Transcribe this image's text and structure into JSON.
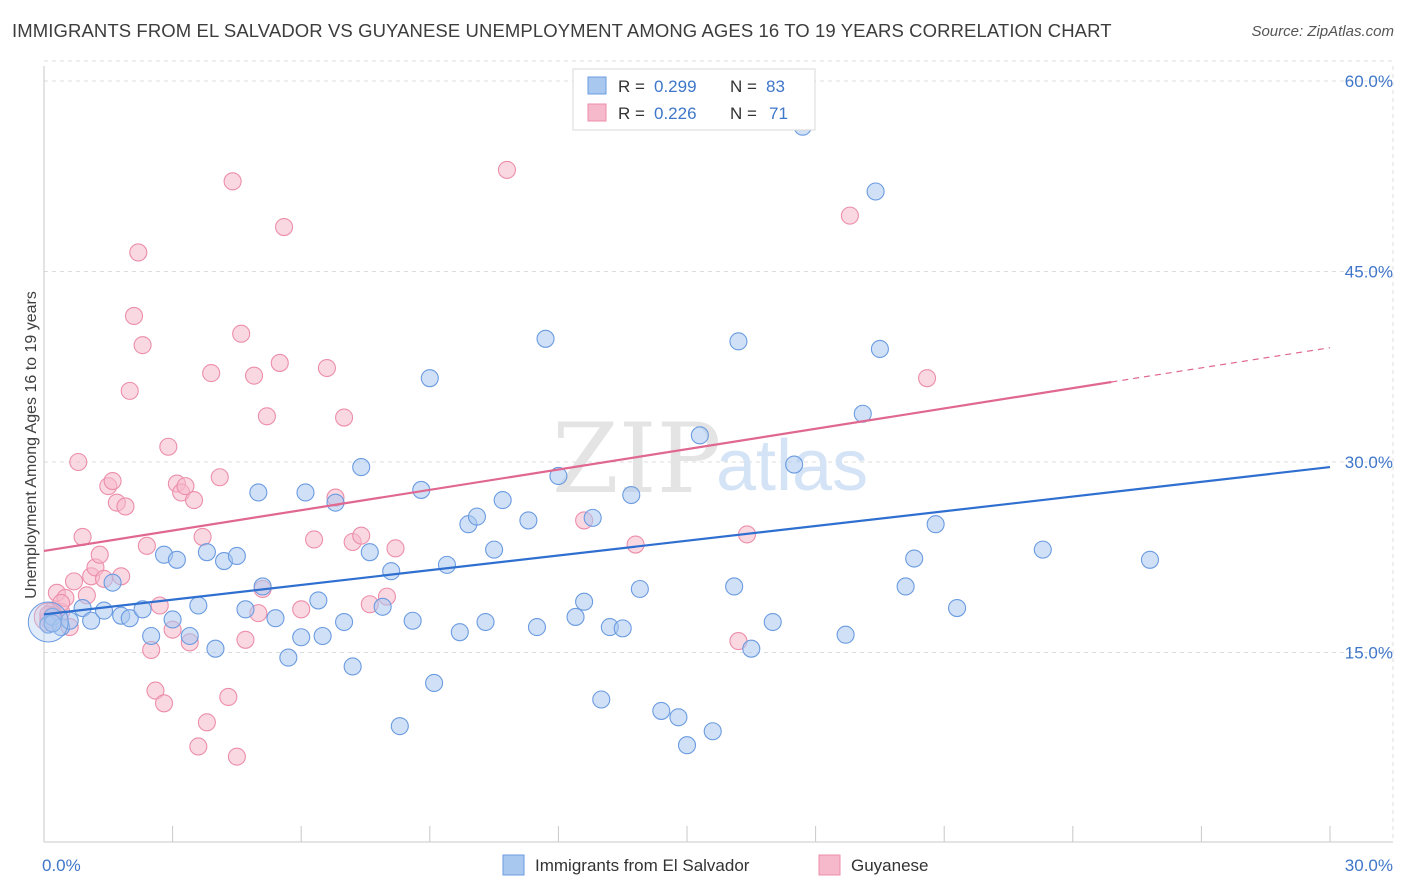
{
  "header": {
    "title": "IMMIGRANTS FROM EL SALVADOR VS GUYANESE UNEMPLOYMENT AMONG AGES 16 TO 19 YEARS CORRELATION CHART",
    "source": "Source: ZipAtlas.com"
  },
  "watermark": {
    "zip": "ZIP",
    "atlas": "atlas"
  },
  "colors": {
    "blue_fill": "#a9c8f0",
    "blue_stroke": "#6b9be0",
    "blue_line": "#2f6fd0",
    "pink_fill": "#f6b8cb",
    "pink_stroke": "#ec8ea9",
    "pink_line": "#e0678f",
    "tick_label": "#3f76c9",
    "grid": "#dcdcdc"
  },
  "legend_top": {
    "entries": [
      {
        "r_label": "R = ",
        "r_value": "0.299",
        "n_label": "N = ",
        "n_value": "83"
      },
      {
        "r_label": "R = ",
        "r_value": "0.226",
        "n_label": "N = ",
        "n_value": "71"
      }
    ]
  },
  "chart_data": {
    "type": "scatter",
    "title": "IMMIGRANTS FROM EL SALVADOR VS GUYANESE UNEMPLOYMENT AMONG AGES 16 TO 19 YEARS CORRELATION CHART",
    "xlabel": "",
    "ylabel": "Unemployment Among Ages 16 to 19 years",
    "xlim": [
      0,
      30
    ],
    "ylim": [
      0,
      61
    ],
    "x_tick_labels": [
      "0.0%",
      "30.0%"
    ],
    "y_ticks": [
      15,
      30,
      45,
      60
    ],
    "y_tick_labels": [
      "15.0%",
      "30.0%",
      "45.0%",
      "60.0%"
    ],
    "grid": true,
    "legend_position": "bottom-center",
    "series": [
      {
        "name": "Immigrants from El Salvador",
        "color": "#a9c8f0",
        "r": 0.299,
        "n": 83,
        "trend": {
          "x0": 0,
          "y0": 18.0,
          "x1": 30,
          "y1": 29.6
        },
        "points": [
          [
            0.1,
            17.2
          ],
          [
            0.2,
            17.8
          ],
          [
            0.4,
            17.0
          ],
          [
            0.6,
            17.5
          ],
          [
            0.9,
            18.5
          ],
          [
            1.1,
            17.5
          ],
          [
            1.4,
            18.3
          ],
          [
            1.6,
            20.5
          ],
          [
            1.8,
            17.9
          ],
          [
            2.0,
            17.7
          ],
          [
            2.3,
            18.4
          ],
          [
            2.5,
            16.3
          ],
          [
            2.8,
            22.7
          ],
          [
            3.0,
            17.6
          ],
          [
            3.1,
            22.3
          ],
          [
            3.4,
            16.3
          ],
          [
            3.6,
            18.7
          ],
          [
            3.8,
            22.9
          ],
          [
            4.0,
            15.3
          ],
          [
            4.2,
            22.2
          ],
          [
            4.5,
            22.6
          ],
          [
            4.7,
            18.4
          ],
          [
            5.0,
            27.6
          ],
          [
            5.1,
            20.2
          ],
          [
            5.4,
            17.7
          ],
          [
            5.7,
            14.6
          ],
          [
            6.0,
            16.2
          ],
          [
            6.1,
            27.6
          ],
          [
            6.4,
            19.1
          ],
          [
            6.5,
            16.3
          ],
          [
            6.8,
            26.8
          ],
          [
            7.0,
            17.4
          ],
          [
            7.2,
            13.9
          ],
          [
            7.4,
            29.6
          ],
          [
            7.6,
            22.9
          ],
          [
            7.9,
            18.6
          ],
          [
            8.1,
            21.4
          ],
          [
            8.3,
            9.2
          ],
          [
            8.6,
            17.5
          ],
          [
            8.8,
            27.8
          ],
          [
            9.0,
            36.6
          ],
          [
            9.1,
            12.6
          ],
          [
            9.4,
            21.9
          ],
          [
            9.7,
            16.6
          ],
          [
            9.9,
            25.1
          ],
          [
            10.1,
            25.7
          ],
          [
            10.3,
            17.4
          ],
          [
            10.5,
            23.1
          ],
          [
            10.7,
            27.0
          ],
          [
            11.3,
            25.4
          ],
          [
            11.5,
            17.0
          ],
          [
            11.7,
            39.7
          ],
          [
            12.0,
            28.9
          ],
          [
            12.4,
            17.8
          ],
          [
            12.6,
            19.0
          ],
          [
            12.8,
            25.6
          ],
          [
            13.0,
            11.3
          ],
          [
            13.2,
            17.0
          ],
          [
            13.5,
            16.9
          ],
          [
            13.7,
            27.4
          ],
          [
            13.9,
            20.0
          ],
          [
            14.4,
            10.4
          ],
          [
            14.8,
            9.9
          ],
          [
            15.0,
            7.7
          ],
          [
            15.3,
            32.1
          ],
          [
            15.6,
            8.8
          ],
          [
            16.1,
            20.2
          ],
          [
            16.2,
            39.5
          ],
          [
            16.5,
            15.3
          ],
          [
            17.0,
            17.4
          ],
          [
            17.5,
            29.8
          ],
          [
            17.7,
            56.4
          ],
          [
            18.7,
            16.4
          ],
          [
            19.1,
            33.8
          ],
          [
            19.5,
            38.9
          ],
          [
            19.4,
            51.3
          ],
          [
            20.1,
            20.2
          ],
          [
            20.3,
            22.4
          ],
          [
            20.8,
            25.1
          ],
          [
            21.3,
            18.5
          ],
          [
            23.3,
            23.1
          ],
          [
            25.8,
            22.3
          ],
          [
            0.2,
            17.3
          ]
        ]
      },
      {
        "name": "Guyanese",
        "color": "#f6b8cb",
        "r": 0.226,
        "n": 71,
        "trend": {
          "x0": 0,
          "y0": 23.0,
          "x1": 24.9,
          "y1": 36.3
        },
        "trend_dashed_to": {
          "x": 30,
          "y": 39.0
        },
        "points": [
          [
            0.1,
            17.6
          ],
          [
            0.2,
            18.3
          ],
          [
            0.3,
            19.7
          ],
          [
            0.4,
            18.2
          ],
          [
            0.5,
            19.3
          ],
          [
            0.6,
            17.0
          ],
          [
            0.7,
            20.6
          ],
          [
            0.8,
            30.0
          ],
          [
            0.9,
            24.1
          ],
          [
            1.0,
            19.5
          ],
          [
            1.1,
            21.0
          ],
          [
            1.2,
            21.7
          ],
          [
            1.3,
            22.7
          ],
          [
            1.4,
            20.8
          ],
          [
            1.5,
            28.1
          ],
          [
            1.6,
            28.5
          ],
          [
            1.7,
            26.8
          ],
          [
            1.8,
            21.0
          ],
          [
            1.9,
            26.5
          ],
          [
            2.0,
            35.6
          ],
          [
            2.1,
            41.5
          ],
          [
            2.2,
            46.5
          ],
          [
            2.3,
            39.2
          ],
          [
            2.4,
            23.4
          ],
          [
            2.5,
            15.2
          ],
          [
            2.6,
            12.0
          ],
          [
            2.7,
            18.7
          ],
          [
            2.8,
            11.0
          ],
          [
            2.9,
            31.2
          ],
          [
            3.0,
            16.8
          ],
          [
            3.1,
            28.3
          ],
          [
            3.2,
            27.6
          ],
          [
            3.3,
            28.1
          ],
          [
            3.4,
            15.8
          ],
          [
            3.5,
            27.0
          ],
          [
            3.6,
            7.6
          ],
          [
            3.7,
            24.1
          ],
          [
            3.8,
            9.5
          ],
          [
            3.9,
            37.0
          ],
          [
            4.1,
            28.8
          ],
          [
            4.3,
            11.5
          ],
          [
            4.4,
            52.1
          ],
          [
            4.5,
            6.8
          ],
          [
            4.6,
            40.1
          ],
          [
            4.7,
            16.0
          ],
          [
            4.9,
            36.8
          ],
          [
            5.0,
            18.1
          ],
          [
            5.1,
            20.0
          ],
          [
            5.2,
            33.6
          ],
          [
            5.6,
            48.5
          ],
          [
            5.5,
            37.8
          ],
          [
            6.0,
            18.4
          ],
          [
            6.3,
            23.9
          ],
          [
            6.6,
            37.4
          ],
          [
            6.8,
            27.2
          ],
          [
            7.0,
            33.5
          ],
          [
            7.2,
            23.7
          ],
          [
            7.4,
            24.2
          ],
          [
            7.6,
            18.8
          ],
          [
            8.0,
            19.4
          ],
          [
            8.2,
            23.2
          ],
          [
            10.8,
            53.0
          ],
          [
            12.6,
            25.4
          ],
          [
            13.8,
            23.5
          ],
          [
            16.2,
            15.9
          ],
          [
            16.4,
            24.3
          ],
          [
            18.8,
            49.4
          ],
          [
            20.6,
            36.6
          ],
          [
            0.1,
            18.0
          ],
          [
            0.4,
            18.9
          ],
          [
            0.2,
            17.9
          ]
        ]
      }
    ]
  },
  "legend_bottom": {
    "items": [
      {
        "label": "Immigrants from El Salvador"
      },
      {
        "label": "Guyanese"
      }
    ]
  }
}
